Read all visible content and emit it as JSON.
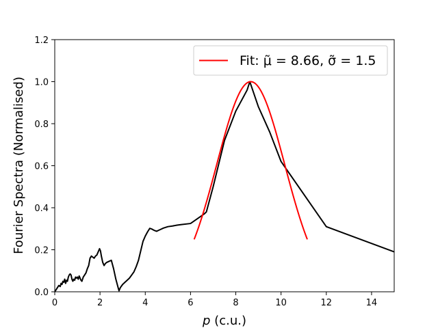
{
  "chart_data": {
    "type": "line",
    "xlabel": "p (c.u.)",
    "xlabel_var": "p",
    "xlabel_unit": " (c.u.)",
    "ylabel": "Fourier Spectra (Normalised)",
    "xlim": [
      0,
      15
    ],
    "ylim": [
      0,
      1.2
    ],
    "xticks": [
      0,
      2,
      4,
      6,
      8,
      10,
      12,
      14
    ],
    "yticks": [
      0.0,
      0.2,
      0.4,
      0.6,
      0.8,
      1.0,
      1.2
    ],
    "xtick_labels": [
      "0",
      "2",
      "4",
      "6",
      "8",
      "10",
      "12",
      "14"
    ],
    "ytick_labels": [
      "0.0",
      "0.2",
      "0.4",
      "0.6",
      "0.8",
      "1.0",
      "1.2"
    ],
    "grid": false,
    "legend_position": "top-right",
    "legend_label": "Fit: μ̃ = 8.66, σ̃ = 1.5",
    "series": [
      {
        "color": "#000000",
        "x": [
          0.0,
          0.06,
          0.12,
          0.18,
          0.24,
          0.28,
          0.32,
          0.36,
          0.4,
          0.44,
          0.48,
          0.52,
          0.56,
          0.6,
          0.64,
          0.68,
          0.72,
          0.76,
          0.8,
          0.84,
          0.88,
          0.92,
          0.96,
          1.0,
          1.04,
          1.08,
          1.12,
          1.16,
          1.2,
          1.26,
          1.32,
          1.38,
          1.44,
          1.5,
          1.56,
          1.62,
          1.68,
          1.74,
          1.8,
          1.86,
          1.92,
          1.98,
          2.02,
          2.06,
          2.12,
          2.18,
          2.24,
          2.3,
          2.4,
          2.5,
          2.6,
          2.7,
          2.8,
          2.84,
          2.9,
          3.0,
          3.1,
          3.2,
          3.3,
          3.4,
          3.5,
          3.6,
          3.7,
          3.8,
          3.9,
          4.0,
          4.1,
          4.2,
          4.3,
          4.4,
          4.5,
          4.6,
          4.7,
          4.8,
          5.0,
          5.2,
          5.4,
          5.6,
          6.0,
          6.2,
          6.4,
          6.6,
          6.7,
          7.0,
          7.5,
          8.0,
          8.5,
          8.62,
          9.0,
          9.5,
          10.0,
          12.0,
          15.0
        ],
        "y": [
          0.0,
          0.01,
          0.02,
          0.03,
          0.025,
          0.04,
          0.035,
          0.05,
          0.045,
          0.06,
          0.04,
          0.055,
          0.05,
          0.07,
          0.08,
          0.085,
          0.08,
          0.06,
          0.05,
          0.06,
          0.055,
          0.07,
          0.065,
          0.07,
          0.06,
          0.075,
          0.065,
          0.055,
          0.05,
          0.07,
          0.08,
          0.09,
          0.11,
          0.125,
          0.16,
          0.17,
          0.165,
          0.16,
          0.17,
          0.175,
          0.19,
          0.205,
          0.195,
          0.17,
          0.14,
          0.125,
          0.135,
          0.14,
          0.145,
          0.15,
          0.11,
          0.06,
          0.02,
          0.005,
          0.02,
          0.035,
          0.045,
          0.055,
          0.065,
          0.08,
          0.095,
          0.12,
          0.15,
          0.195,
          0.24,
          0.265,
          0.285,
          0.302,
          0.298,
          0.292,
          0.288,
          0.293,
          0.298,
          0.303,
          0.31,
          0.313,
          0.317,
          0.32,
          0.325,
          0.34,
          0.355,
          0.37,
          0.38,
          0.5,
          0.72,
          0.86,
          0.96,
          1.0,
          0.88,
          0.76,
          0.62,
          0.31,
          0.19
        ]
      },
      {
        "color": "#ff0000",
        "type": "gaussian",
        "mu": 8.66,
        "sigma": 1.5,
        "x_range": [
          6.16,
          11.16
        ]
      }
    ]
  }
}
